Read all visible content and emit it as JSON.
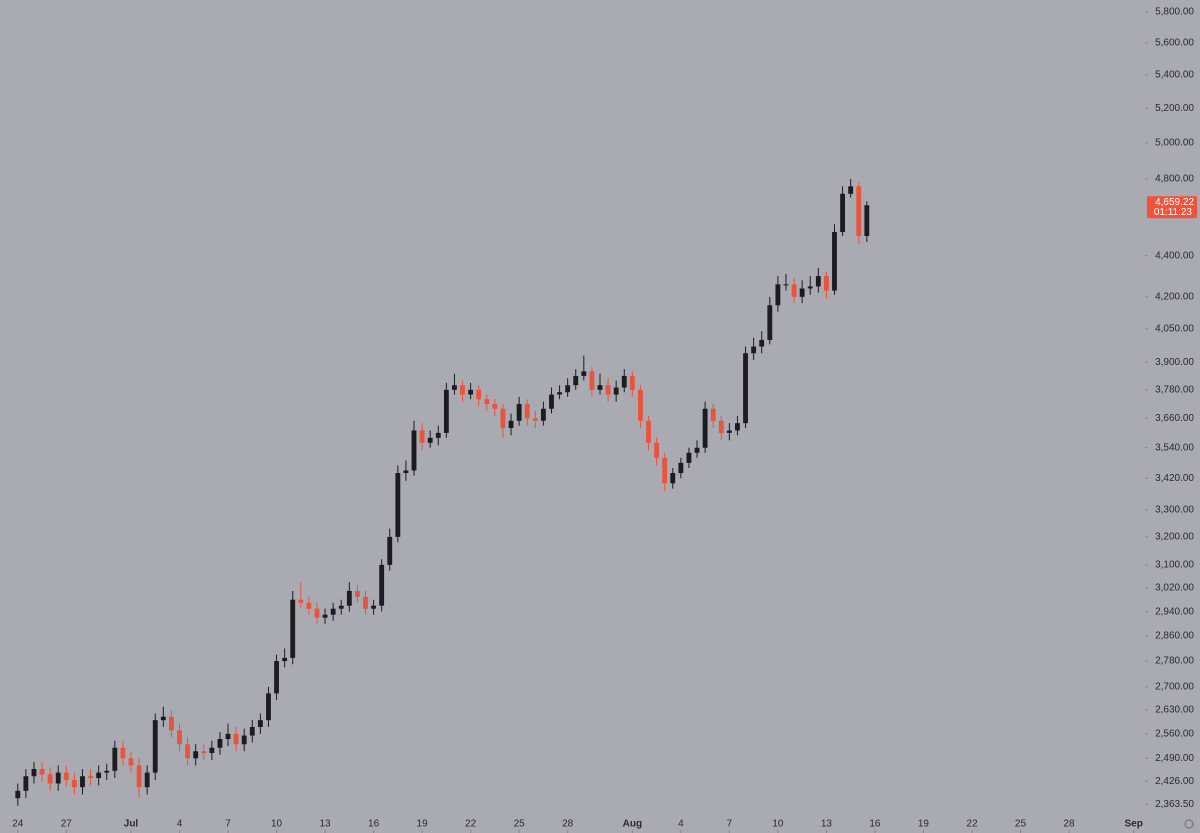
{
  "chart_data": {
    "type": "candlestick",
    "log_y": true,
    "background": "#a9aab2",
    "up_color": "#1c1c20",
    "down_color": "#e8553e",
    "x": [
      0,
      0.5,
      1,
      1.5,
      2,
      2.5,
      3,
      3.5,
      4,
      4.5,
      5,
      5.5,
      6,
      6.5,
      7,
      7.5,
      8,
      8.5,
      9,
      9.5,
      10,
      10.5,
      11,
      11.5,
      12,
      12.5,
      13,
      13.5,
      14,
      14.5,
      15,
      15.5,
      16,
      16.5,
      17,
      17.5,
      18,
      18.5,
      19,
      19.5,
      20,
      20.5,
      21,
      21.5,
      22,
      22.5,
      23,
      23.5,
      24,
      24.5,
      25,
      25.5,
      26,
      26.5,
      27,
      27.5,
      28,
      28.5,
      29,
      29.5,
      30,
      30.5,
      31,
      31.5,
      32,
      32.5,
      33,
      33.5,
      34,
      34.5,
      35,
      35.5,
      36,
      36.5,
      37,
      37.5,
      38,
      38.5,
      39,
      39.5,
      40,
      40.5,
      41,
      41.5,
      42,
      42.5,
      43,
      43.5,
      44,
      44.5,
      45,
      45.5,
      46,
      46.5,
      47,
      47.5,
      48,
      48.5,
      49,
      49.5,
      50,
      50.5,
      51,
      51.5,
      52,
      52.5
    ],
    "open": [
      2380,
      2400,
      2440,
      2460,
      2445,
      2420,
      2450,
      2430,
      2410,
      2440,
      2435,
      2450,
      2455,
      2520,
      2490,
      2470,
      2410,
      2450,
      2600,
      2610,
      2570,
      2530,
      2490,
      2510,
      2505,
      2520,
      2545,
      2560,
      2530,
      2555,
      2580,
      2600,
      2680,
      2780,
      2790,
      2980,
      2970,
      2950,
      2920,
      2930,
      2950,
      2960,
      3010,
      2990,
      2950,
      2960,
      3100,
      3200,
      3440,
      3450,
      3610,
      3560,
      3580,
      3600,
      3780,
      3800,
      3760,
      3780,
      3740,
      3720,
      3700,
      3620,
      3650,
      3720,
      3660,
      3650,
      3700,
      3760,
      3770,
      3800,
      3840,
      3860,
      3780,
      3800,
      3760,
      3790,
      3840,
      3780,
      3650,
      3560,
      3500,
      3400,
      3440,
      3480,
      3520,
      3540,
      3700,
      3650,
      3600,
      3610,
      3640,
      3940,
      3970,
      4000,
      4160,
      4260,
      4260,
      4200,
      4240,
      4250,
      4300,
      4230,
      4520,
      4720,
      4760,
      4500
    ],
    "high": [
      2420,
      2460,
      2480,
      2480,
      2465,
      2470,
      2470,
      2450,
      2460,
      2460,
      2470,
      2475,
      2540,
      2540,
      2510,
      2490,
      2470,
      2620,
      2640,
      2630,
      2590,
      2550,
      2530,
      2530,
      2540,
      2565,
      2590,
      2580,
      2575,
      2600,
      2620,
      2700,
      2800,
      2820,
      3010,
      3040,
      2990,
      2970,
      2950,
      2970,
      2980,
      3040,
      3030,
      3010,
      2980,
      3120,
      3230,
      3470,
      3490,
      3650,
      3640,
      3610,
      3630,
      3810,
      3850,
      3820,
      3810,
      3800,
      3760,
      3740,
      3720,
      3680,
      3750,
      3740,
      3690,
      3730,
      3790,
      3800,
      3830,
      3870,
      3930,
      3880,
      3850,
      3830,
      3820,
      3870,
      3860,
      3800,
      3670,
      3580,
      3520,
      3460,
      3500,
      3540,
      3570,
      3730,
      3720,
      3670,
      3640,
      3670,
      3970,
      4010,
      4040,
      4200,
      4300,
      4310,
      4290,
      4280,
      4300,
      4340,
      4320,
      4560,
      4760,
      4800,
      4780,
      4680
    ],
    "low": [
      2360,
      2380,
      2420,
      2425,
      2400,
      2400,
      2410,
      2390,
      2390,
      2415,
      2415,
      2430,
      2435,
      2470,
      2450,
      2380,
      2390,
      2430,
      2580,
      2550,
      2510,
      2470,
      2470,
      2485,
      2485,
      2500,
      2525,
      2510,
      2510,
      2535,
      2560,
      2580,
      2660,
      2760,
      2770,
      2950,
      2930,
      2900,
      2900,
      2910,
      2930,
      2940,
      2970,
      2930,
      2930,
      2940,
      3080,
      3180,
      3410,
      3430,
      3530,
      3540,
      3550,
      3580,
      3760,
      3730,
      3740,
      3710,
      3690,
      3670,
      3580,
      3590,
      3630,
      3630,
      3620,
      3630,
      3680,
      3740,
      3750,
      3780,
      3820,
      3750,
      3760,
      3730,
      3730,
      3770,
      3750,
      3620,
      3530,
      3470,
      3370,
      3380,
      3420,
      3460,
      3500,
      3520,
      3620,
      3570,
      3570,
      3590,
      3620,
      3910,
      3940,
      3980,
      4130,
      4230,
      4170,
      4170,
      4210,
      4220,
      4190,
      4210,
      4500,
      4700,
      4460,
      4470
    ],
    "close": [
      2400,
      2440,
      2460,
      2445,
      2420,
      2450,
      2430,
      2410,
      2440,
      2435,
      2450,
      2455,
      2520,
      2490,
      2470,
      2410,
      2450,
      2600,
      2610,
      2570,
      2530,
      2490,
      2510,
      2505,
      2520,
      2545,
      2560,
      2530,
      2555,
      2580,
      2600,
      2680,
      2780,
      2790,
      2980,
      2970,
      2950,
      2920,
      2930,
      2950,
      2960,
      3010,
      2990,
      2950,
      2960,
      3100,
      3200,
      3440,
      3450,
      3610,
      3560,
      3580,
      3600,
      3780,
      3800,
      3760,
      3780,
      3740,
      3720,
      3700,
      3620,
      3650,
      3720,
      3660,
      3650,
      3700,
      3760,
      3770,
      3800,
      3840,
      3860,
      3780,
      3800,
      3760,
      3790,
      3840,
      3780,
      3650,
      3560,
      3500,
      3400,
      3440,
      3480,
      3520,
      3540,
      3700,
      3650,
      3600,
      3610,
      3640,
      3940,
      3970,
      4000,
      4160,
      4260,
      4260,
      4200,
      4240,
      4250,
      4300,
      4230,
      4520,
      4720,
      4760,
      4500,
      4659.22
    ],
    "xlim": [
      -1.1,
      69.7
    ],
    "xticks": [
      {
        "value": 0,
        "label": "24"
      },
      {
        "value": 3,
        "label": "27"
      },
      {
        "value": 7,
        "label": "Jul"
      },
      {
        "value": 10,
        "label": "4"
      },
      {
        "value": 13,
        "label": "7"
      },
      {
        "value": 16,
        "label": "10"
      },
      {
        "value": 19,
        "label": "13"
      },
      {
        "value": 22,
        "label": "16"
      },
      {
        "value": 25,
        "label": "19"
      },
      {
        "value": 28,
        "label": "22"
      },
      {
        "value": 31,
        "label": "25"
      },
      {
        "value": 34,
        "label": "28"
      },
      {
        "value": 38,
        "label": "Aug"
      },
      {
        "value": 41,
        "label": "4"
      },
      {
        "value": 44,
        "label": "7"
      },
      {
        "value": 47,
        "label": "10"
      },
      {
        "value": 50,
        "label": "13"
      },
      {
        "value": 53,
        "label": "16"
      },
      {
        "value": 56,
        "label": "19"
      },
      {
        "value": 59,
        "label": "22"
      },
      {
        "value": 62,
        "label": "25"
      },
      {
        "value": 65,
        "label": "28"
      },
      {
        "value": 69,
        "label": "Sep"
      }
    ],
    "ylim": [
      2288,
      5879
    ],
    "yticks": [
      {
        "value": 5800,
        "label": "5,800.00"
      },
      {
        "value": 5600,
        "label": "5,600.00"
      },
      {
        "value": 5400,
        "label": "5,400.00"
      },
      {
        "value": 5200,
        "label": "5,200.00"
      },
      {
        "value": 5000,
        "label": "5,000.00"
      },
      {
        "value": 4800,
        "label": "4,800.00"
      },
      {
        "value": 4400,
        "label": "4,400.00"
      },
      {
        "value": 4200,
        "label": "4,200.00"
      },
      {
        "value": 4050,
        "label": "4,050.00"
      },
      {
        "value": 3900,
        "label": "3,900.00"
      },
      {
        "value": 3780,
        "label": "3,780.00"
      },
      {
        "value": 3660,
        "label": "3,660.00"
      },
      {
        "value": 3540,
        "label": "3,540.00"
      },
      {
        "value": 3420,
        "label": "3,420.00"
      },
      {
        "value": 3300,
        "label": "3,300.00"
      },
      {
        "value": 3200,
        "label": "3,200.00"
      },
      {
        "value": 3100,
        "label": "3,100.00"
      },
      {
        "value": 3020,
        "label": "3,020.00"
      },
      {
        "value": 2940,
        "label": "2,940.00"
      },
      {
        "value": 2860,
        "label": "2,860.00"
      },
      {
        "value": 2780,
        "label": "2,780.00"
      },
      {
        "value": 2700,
        "label": "2,700.00"
      },
      {
        "value": 2630,
        "label": "2,630.00"
      },
      {
        "value": 2560,
        "label": "2,560.00"
      },
      {
        "value": 2490,
        "label": "2,490.00"
      },
      {
        "value": 2426,
        "label": "2,426.00"
      },
      {
        "value": 2363.5,
        "label": "2,363.50"
      }
    ],
    "last_price": {
      "value": 4659.22,
      "label": "4,659.22"
    },
    "last_price_color": "#f0533a",
    "countdown": "01:11:23"
  }
}
